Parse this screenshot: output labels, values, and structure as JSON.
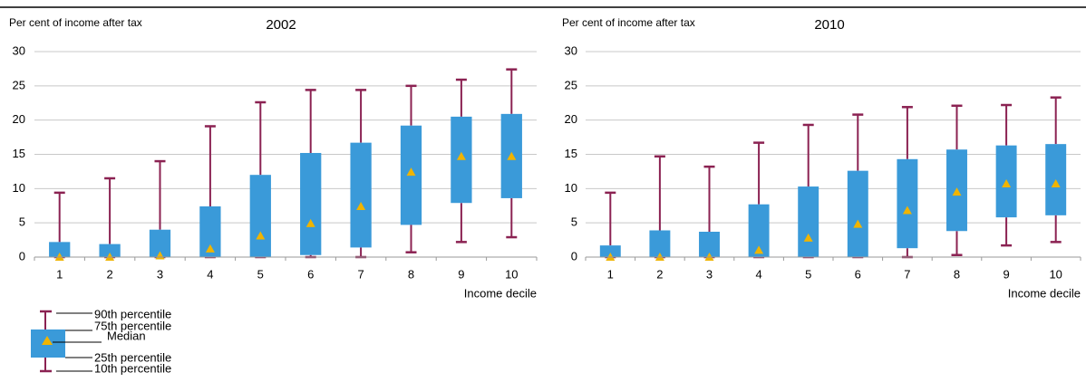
{
  "chart_data": [
    {
      "type": "box",
      "title": "2002",
      "y_label": "Per cent of income after tax",
      "x_label": "Income decile",
      "categories": [
        "1",
        "2",
        "3",
        "4",
        "5",
        "6",
        "7",
        "8",
        "9",
        "10"
      ],
      "p10": [
        0,
        0,
        0,
        0,
        0,
        0,
        0,
        0.7,
        2.2,
        2.9
      ],
      "q1": [
        0,
        0,
        0,
        0,
        0,
        0.3,
        1.4,
        4.7,
        7.9,
        8.6
      ],
      "median": [
        0,
        0,
        0.2,
        1.2,
        3.1,
        4.9,
        7.4,
        12.4,
        14.7,
        14.7
      ],
      "q3": [
        2.2,
        1.9,
        4,
        7.4,
        12,
        15.2,
        16.7,
        19.2,
        20.5,
        20.9
      ],
      "p90": [
        9.4,
        11.5,
        14,
        19.1,
        22.6,
        24.4,
        24.4,
        25,
        25.9,
        27.4
      ],
      "ylim": [
        0,
        30
      ],
      "yticks": [
        0,
        5,
        10,
        15,
        20,
        25,
        30
      ],
      "grid": true,
      "box_color": "#3a9ad9",
      "whisker_color": "#8b2252",
      "median_color": "#f0b400"
    },
    {
      "type": "box",
      "title": "2010",
      "y_label": "Per cent of income after tax",
      "x_label": "Income decile",
      "categories": [
        "1",
        "2",
        "3",
        "4",
        "5",
        "6",
        "7",
        "8",
        "9",
        "10"
      ],
      "p10": [
        0,
        0,
        0,
        0,
        0,
        0,
        0,
        0.3,
        1.7,
        2.2
      ],
      "q1": [
        0,
        0,
        0,
        0,
        0,
        0,
        1.3,
        3.8,
        5.8,
        6.1
      ],
      "median": [
        0,
        0,
        0,
        1,
        2.8,
        4.8,
        6.8,
        9.5,
        10.7,
        10.7
      ],
      "q3": [
        1.7,
        3.9,
        3.7,
        7.7,
        10.3,
        12.6,
        14.3,
        15.7,
        16.3,
        16.5
      ],
      "p90": [
        9.4,
        14.7,
        13.2,
        16.7,
        19.3,
        20.8,
        21.9,
        22.1,
        22.2,
        23.3
      ],
      "ylim": [
        0,
        30
      ],
      "yticks": [
        0,
        5,
        10,
        15,
        20,
        25,
        30
      ],
      "grid": true,
      "box_color": "#3a9ad9",
      "whisker_color": "#8b2252",
      "median_color": "#f0b400"
    }
  ],
  "legend": {
    "labels": [
      "90th percentile",
      "75th percentile",
      "Median",
      "25th percentile",
      "10th percentile"
    ]
  }
}
